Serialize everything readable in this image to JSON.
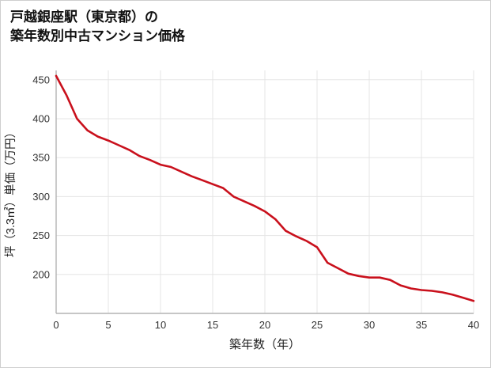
{
  "title": {
    "line1": "戸越銀座駅（東京都）の",
    "line2": "築年数別中古マンション価格"
  },
  "chart_data": {
    "type": "line",
    "title": "戸越銀座駅（東京都）の築年数別中古マンション価格",
    "xlabel": "築年数（年）",
    "ylabel": "坪（3.3㎡）単価（万円）",
    "x": [
      0,
      1,
      2,
      3,
      4,
      5,
      6,
      7,
      8,
      9,
      10,
      11,
      12,
      13,
      14,
      15,
      16,
      17,
      18,
      19,
      20,
      21,
      22,
      23,
      24,
      25,
      26,
      27,
      28,
      29,
      30,
      31,
      32,
      33,
      34,
      35,
      36,
      37,
      38,
      39,
      40
    ],
    "values": [
      455,
      430,
      400,
      385,
      377,
      372,
      366,
      360,
      352,
      347,
      341,
      338,
      332,
      326,
      321,
      316,
      311,
      300,
      294,
      288,
      281,
      271,
      256,
      249,
      243,
      235,
      215,
      208,
      201,
      198,
      196,
      196,
      193,
      186,
      182,
      180,
      179,
      177,
      174,
      170,
      166
    ],
    "xlim": [
      0,
      40
    ],
    "ylim": [
      150,
      462
    ],
    "xticks": [
      0,
      5,
      10,
      15,
      20,
      25,
      30,
      35,
      40
    ],
    "yticks": [
      200,
      250,
      300,
      350,
      400,
      450
    ],
    "line_color": "#c9101c",
    "grid_color": "#e5e5e5",
    "axis_color": "#b3b3b3",
    "tick_text_color": "#333333",
    "legend": "none",
    "grid": true
  }
}
